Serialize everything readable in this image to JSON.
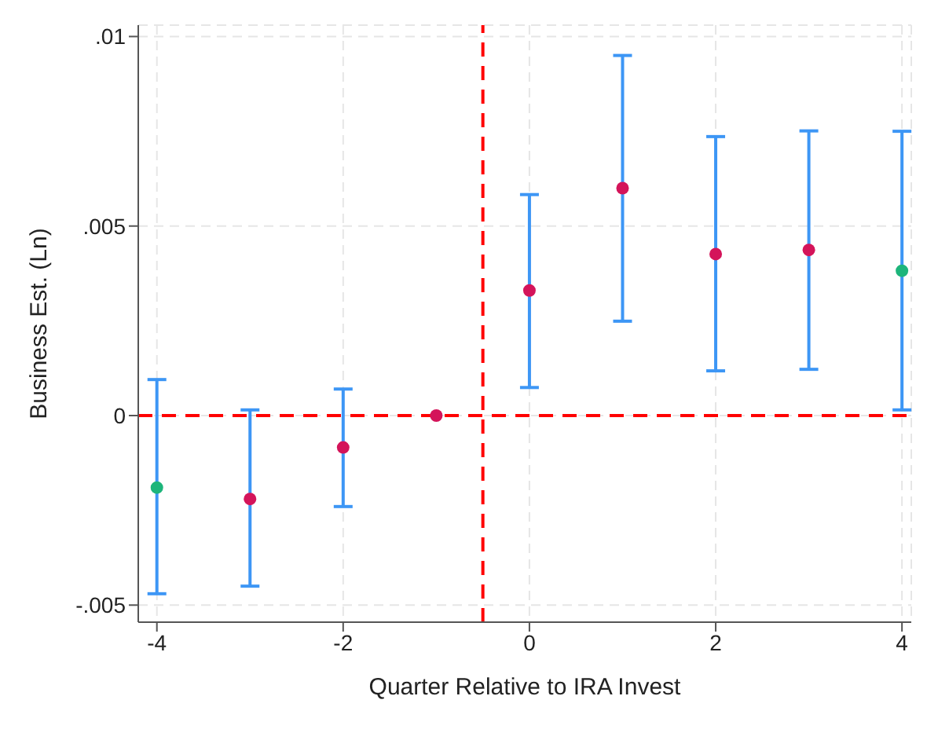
{
  "chart_data": {
    "type": "scatter",
    "xlabel": "Quarter Relative to IRA Invest",
    "ylabel": "Business Est. (Ln)",
    "x": [
      -4,
      -3,
      -2,
      -1,
      0,
      1,
      2,
      3,
      4
    ],
    "values": [
      -0.0019,
      -0.0022,
      -0.00084,
      0,
      0.0033,
      0.006,
      0.00426,
      0.00437,
      0.00382
    ],
    "errors": [
      [
        -0.0047,
        0.00095
      ],
      [
        -0.0045,
        0.00015
      ],
      [
        -0.0024,
        0.0007
      ],
      null,
      [
        0.00074,
        0.00583
      ],
      [
        0.00249,
        0.0095
      ],
      [
        0.00118,
        0.00736
      ],
      [
        0.00122,
        0.00751
      ],
      [
        0.00015,
        0.0075
      ]
    ],
    "colors": [
      "#1db57b",
      "#d4145a",
      "#d4145a",
      "#d4145a",
      "#d4145a",
      "#d4145a",
      "#d4145a",
      "#d4145a",
      "#1db57b"
    ],
    "xlim": [
      -4.2,
      4.1
    ],
    "xticks": [
      -4,
      -2,
      0,
      2,
      4
    ],
    "ylim": [
      -0.00545,
      0.0103
    ],
    "yticks": [
      {
        "value": -0.005,
        "label": "-.005"
      },
      {
        "value": 0,
        "label": "0"
      },
      {
        "value": 0.005,
        "label": ".005"
      },
      {
        "value": 0.01,
        "label": ".01"
      }
    ],
    "ref_lines": [
      {
        "axis": "y",
        "value": 0,
        "color": "#ff0000",
        "line_style": "dashed"
      },
      {
        "axis": "x",
        "value": -0.5,
        "color": "#ff0000",
        "line_style": "dashed"
      }
    ],
    "grid": true,
    "marker": "circle"
  }
}
